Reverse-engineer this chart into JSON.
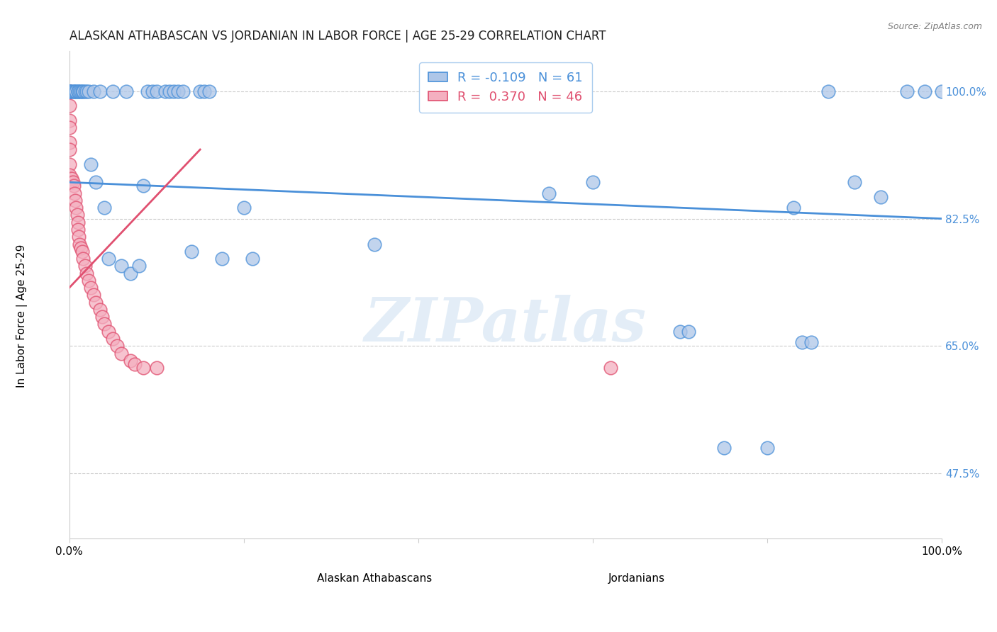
{
  "title": "ALASKAN ATHABASCAN VS JORDANIAN IN LABOR FORCE | AGE 25-29 CORRELATION CHART",
  "source": "Source: ZipAtlas.com",
  "xlabel_blue": "Alaskan Athabascans",
  "xlabel_pink": "Jordanians",
  "ylabel": "In Labor Force | Age 25-29",
  "r_blue": -0.109,
  "n_blue": 61,
  "r_pink": 0.37,
  "n_pink": 46,
  "blue_color": "#aec6e8",
  "pink_color": "#f4afc0",
  "blue_line_color": "#4a90d9",
  "pink_line_color": "#e05070",
  "watermark_color": "#c8ddf0",
  "xlim": [
    0.0,
    1.0
  ],
  "ylim": [
    0.385,
    1.055
  ],
  "yticks": [
    0.475,
    0.65,
    0.825,
    1.0
  ],
  "ytick_labels": [
    "47.5%",
    "65.0%",
    "82.5%",
    "100.0%"
  ],
  "blue_x": [
    0.0,
    0.0,
    0.0,
    0.0,
    0.003,
    0.005,
    0.005,
    0.007,
    0.008,
    0.01,
    0.01,
    0.012,
    0.013,
    0.015,
    0.016,
    0.018,
    0.02,
    0.022,
    0.025,
    0.028,
    0.03,
    0.035,
    0.04,
    0.045,
    0.05,
    0.06,
    0.065,
    0.07,
    0.08,
    0.085,
    0.09,
    0.095,
    0.1,
    0.11,
    0.115,
    0.12,
    0.125,
    0.13,
    0.14,
    0.15,
    0.155,
    0.16,
    0.175,
    0.2,
    0.21,
    0.35,
    0.55,
    0.6,
    0.7,
    0.71,
    0.75,
    0.8,
    0.83,
    0.84,
    0.85,
    0.87,
    0.9,
    0.93,
    0.96,
    0.98,
    1.0
  ],
  "blue_y": [
    1.0,
    1.0,
    1.0,
    1.0,
    1.0,
    1.0,
    1.0,
    1.0,
    1.0,
    1.0,
    1.0,
    1.0,
    1.0,
    1.0,
    1.0,
    1.0,
    1.0,
    1.0,
    0.9,
    1.0,
    0.875,
    1.0,
    0.84,
    0.77,
    1.0,
    0.76,
    1.0,
    0.75,
    0.76,
    0.87,
    1.0,
    1.0,
    1.0,
    1.0,
    1.0,
    1.0,
    1.0,
    1.0,
    0.78,
    1.0,
    1.0,
    1.0,
    0.77,
    0.84,
    0.77,
    0.79,
    0.86,
    0.875,
    0.67,
    0.67,
    0.51,
    0.51,
    0.84,
    0.655,
    0.655,
    1.0,
    0.875,
    0.855,
    1.0,
    1.0,
    1.0
  ],
  "pink_x": [
    0.0,
    0.0,
    0.0,
    0.0,
    0.0,
    0.0,
    0.0,
    0.0,
    0.0,
    0.0,
    0.0,
    0.0,
    0.0,
    0.002,
    0.003,
    0.004,
    0.005,
    0.006,
    0.007,
    0.008,
    0.009,
    0.01,
    0.01,
    0.011,
    0.012,
    0.013,
    0.015,
    0.016,
    0.018,
    0.02,
    0.022,
    0.025,
    0.028,
    0.03,
    0.035,
    0.038,
    0.04,
    0.045,
    0.05,
    0.055,
    0.06,
    0.07,
    0.075,
    0.085,
    0.1,
    0.62
  ],
  "pink_y": [
    1.0,
    1.0,
    1.0,
    1.0,
    1.0,
    1.0,
    0.98,
    0.96,
    0.95,
    0.93,
    0.92,
    0.9,
    0.885,
    0.875,
    0.88,
    0.875,
    0.87,
    0.86,
    0.85,
    0.84,
    0.83,
    0.82,
    0.81,
    0.8,
    0.79,
    0.785,
    0.78,
    0.77,
    0.76,
    0.75,
    0.74,
    0.73,
    0.72,
    0.71,
    0.7,
    0.69,
    0.68,
    0.67,
    0.66,
    0.65,
    0.64,
    0.63,
    0.625,
    0.62,
    0.62,
    0.62
  ],
  "blue_trend_start_y": 0.875,
  "blue_trend_end_y": 0.825,
  "pink_trend_x0": 0.0,
  "pink_trend_y0": 0.73,
  "pink_trend_x1": 0.15,
  "pink_trend_y1": 0.92
}
